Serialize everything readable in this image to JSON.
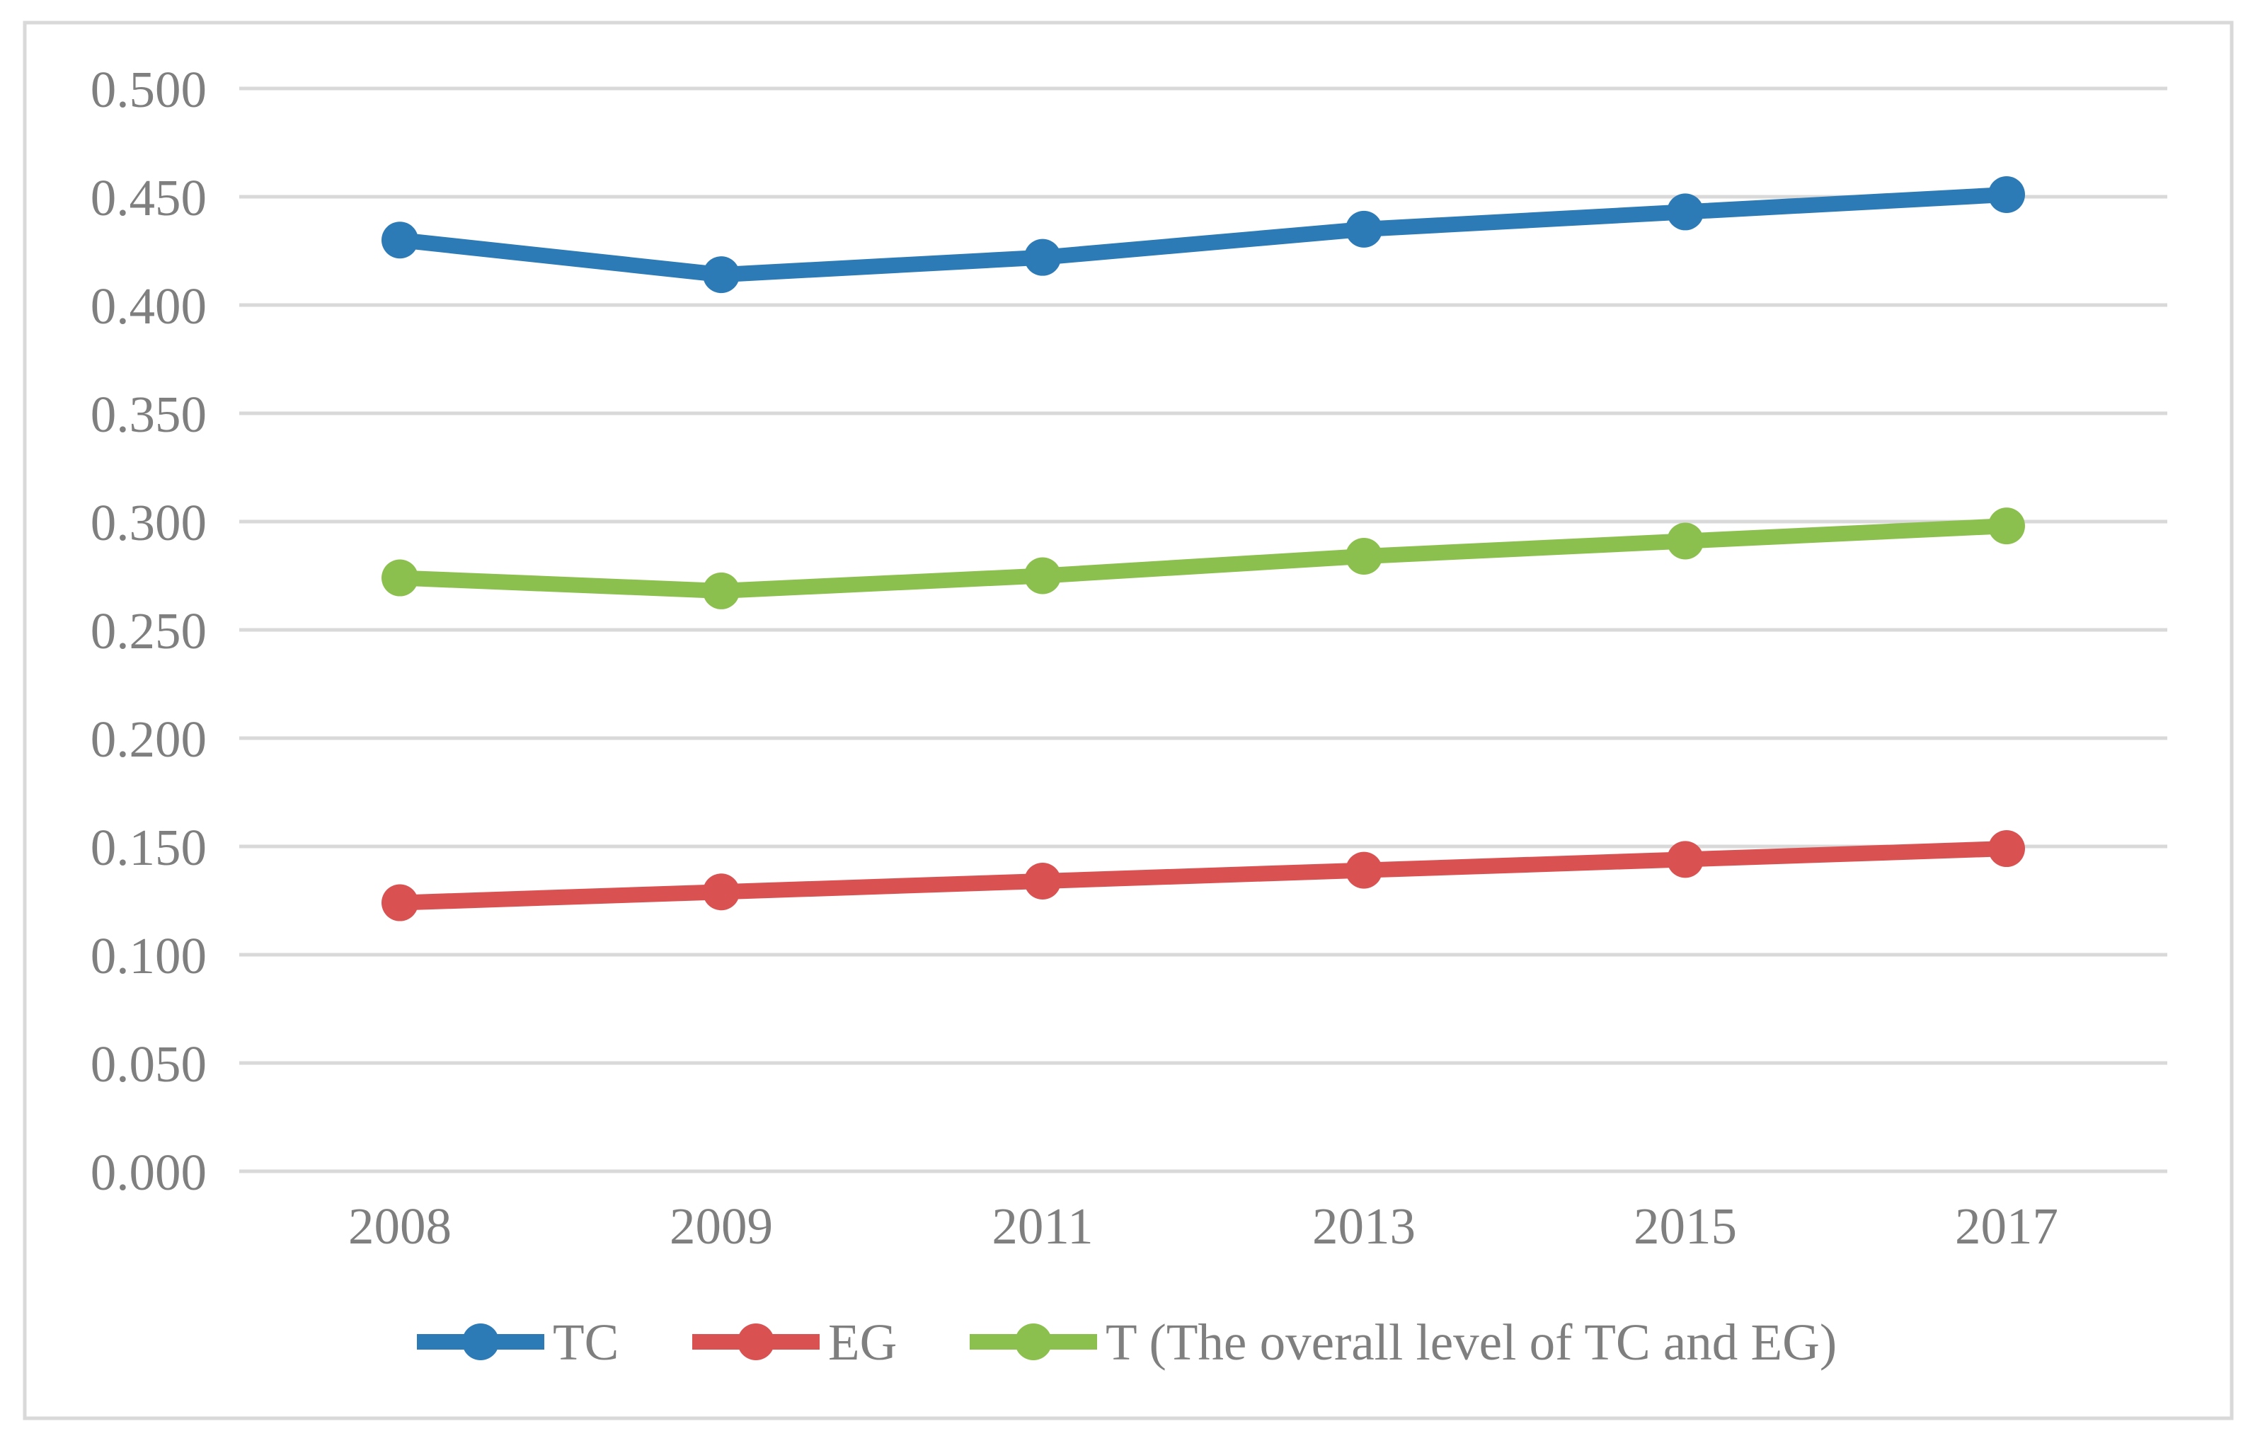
{
  "chart_data": {
    "type": "line",
    "categories": [
      "2008",
      "2009",
      "2011",
      "2013",
      "2015",
      "2017"
    ],
    "series": [
      {
        "name": "TC",
        "color": "#2C7BB6",
        "values": [
          0.43,
          0.414,
          0.422,
          0.435,
          0.443,
          0.451
        ]
      },
      {
        "name": "EG",
        "color": "#D95151",
        "values": [
          0.124,
          0.129,
          0.134,
          0.139,
          0.144,
          0.149
        ]
      },
      {
        "name": "T (The overall level of TC and EG)",
        "color": "#8CC04E",
        "values": [
          0.274,
          0.268,
          0.275,
          0.284,
          0.291,
          0.298
        ]
      }
    ],
    "title": "",
    "xlabel": "",
    "ylabel": "",
    "ylim": [
      0.0,
      0.5
    ],
    "ytick_step": 0.05,
    "ytick_labels": [
      "0.000",
      "0.050",
      "0.100",
      "0.150",
      "0.200",
      "0.250",
      "0.300",
      "0.350",
      "0.400",
      "0.450",
      "0.500"
    ],
    "grid": true,
    "legend_position": "bottom",
    "marker": "circle",
    "colors": {
      "gridline": "#D9D9D9",
      "border": "#D9D9D9",
      "axis_text": "#7F7F7F",
      "background": "#FFFFFF"
    }
  }
}
